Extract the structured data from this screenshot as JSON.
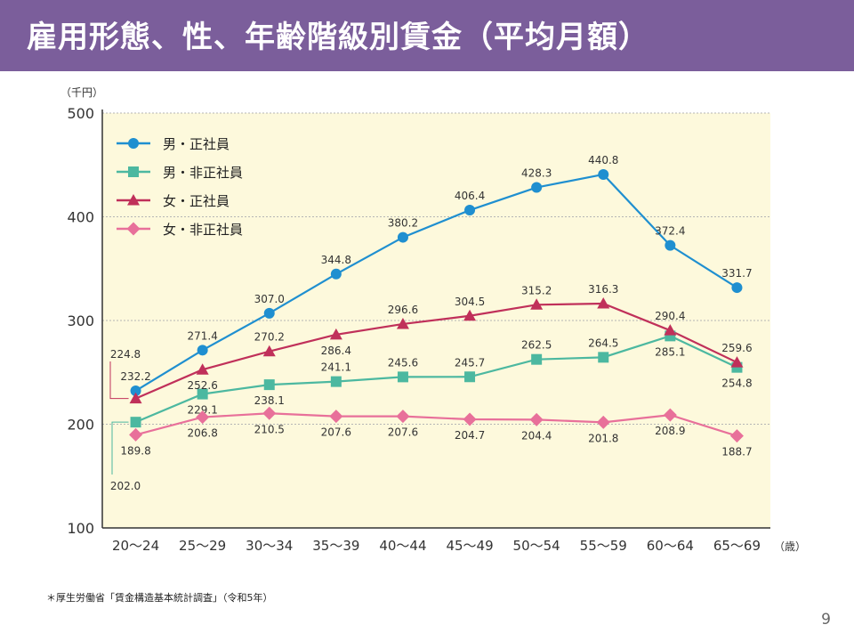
{
  "slide": {
    "title": "雇用形態、性、年齢階級別賃金（平均月額）",
    "footnote": "＊厚生労働省「賃金構造基本統計調査」（令和5年）",
    "page_number": "9"
  },
  "colors": {
    "title_bar": "#7b5e9b",
    "plot_bg": "#fdf9dc",
    "axis": "#333333",
    "grid": "#b5b5b5"
  },
  "chart_data": {
    "type": "line",
    "title": "雇用形態、性、年齢階級別賃金（平均月額）",
    "ylabel": "（千円）",
    "xlabel": "（歳）",
    "ylim": [
      100,
      500
    ],
    "yticks": [
      100,
      200,
      300,
      400,
      500
    ],
    "grid": true,
    "legend_position": "top-left",
    "categories": [
      "20～24",
      "25～29",
      "30～34",
      "35～39",
      "40～44",
      "45～49",
      "50～54",
      "55～59",
      "60～64",
      "65～69"
    ],
    "series": [
      {
        "name": "男・正社員",
        "color": "#1f8fd0",
        "marker": "circle",
        "values": [
          232.2,
          271.4,
          307.0,
          344.8,
          380.2,
          406.4,
          428.3,
          440.8,
          372.4,
          331.7
        ],
        "labels": [
          "232.2",
          "271.4",
          "307.0",
          "344.8",
          "380.2",
          "406.4",
          "428.3",
          "440.8",
          "372.4",
          "331.7"
        ],
        "label_pos": [
          "above",
          "above",
          "above",
          "above",
          "above",
          "above",
          "above",
          "above",
          "above",
          "above"
        ]
      },
      {
        "name": "男・非正社員",
        "color": "#4cb8a0",
        "marker": "square",
        "values": [
          202.0,
          229.1,
          238.1,
          241.1,
          245.6,
          245.7,
          262.5,
          264.5,
          285.1,
          254.8
        ],
        "labels": [
          "202.0",
          "229.1",
          "238.1",
          "241.1",
          "245.6",
          "245.7",
          "262.5",
          "264.5",
          "285.1",
          "254.8"
        ],
        "label_pos": [
          "callout",
          "below",
          "below",
          "above",
          "above",
          "above",
          "above",
          "above",
          "below",
          "below"
        ]
      },
      {
        "name": "女・正社員",
        "color": "#c0305a",
        "marker": "triangle",
        "values": [
          224.8,
          252.6,
          270.2,
          286.4,
          296.6,
          304.5,
          315.2,
          316.3,
          290.4,
          259.6
        ],
        "labels": [
          "224.8",
          "252.6",
          "270.2",
          "286.4",
          "296.6",
          "304.5",
          "315.2",
          "316.3",
          "290.4",
          "259.6"
        ],
        "label_pos": [
          "callout",
          "below",
          "above",
          "below",
          "above",
          "above",
          "above",
          "above",
          "above",
          "above"
        ]
      },
      {
        "name": "女・非正社員",
        "color": "#e8709a",
        "marker": "diamond",
        "values": [
          189.8,
          206.8,
          210.5,
          207.6,
          207.6,
          204.7,
          204.4,
          201.8,
          208.9,
          188.7
        ],
        "labels": [
          "189.8",
          "206.8",
          "210.5",
          "207.6",
          "207.6",
          "204.7",
          "204.4",
          "201.8",
          "208.9",
          "188.7"
        ],
        "label_pos": [
          "below",
          "below",
          "below",
          "below",
          "below",
          "below",
          "below",
          "below",
          "below",
          "below"
        ]
      }
    ]
  }
}
